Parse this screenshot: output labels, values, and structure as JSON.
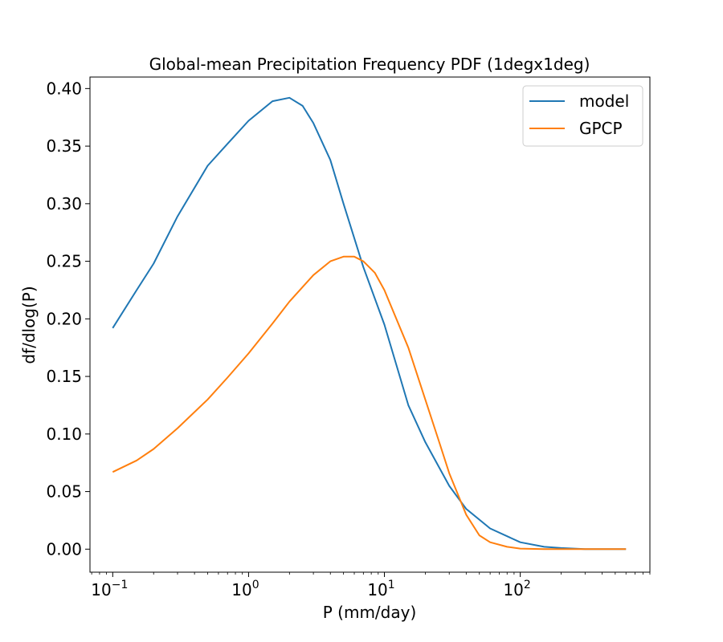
{
  "chart_data": {
    "type": "line",
    "title": "Global-mean Precipitation Frequency PDF (1degx1deg)",
    "xlabel": "P (mm/day)",
    "ylabel": "df/dlog(P)",
    "xscale": "log",
    "xlim": [
      0.068,
      900
    ],
    "ylim": [
      -0.02,
      0.41
    ],
    "xticks": [
      {
        "value": 0.1,
        "base": "10",
        "exp": "−1"
      },
      {
        "value": 1,
        "base": "10",
        "exp": "0"
      },
      {
        "value": 10,
        "base": "10",
        "exp": "1"
      },
      {
        "value": 100,
        "base": "10",
        "exp": "2"
      }
    ],
    "yticks": [
      "0.00",
      "0.05",
      "0.10",
      "0.15",
      "0.20",
      "0.25",
      "0.30",
      "0.35",
      "0.40"
    ],
    "legend_position": "top-right",
    "series": [
      {
        "name": "model",
        "color": "#1f77b4",
        "x": [
          0.1,
          0.15,
          0.2,
          0.3,
          0.5,
          0.7,
          1.0,
          1.5,
          2.0,
          2.5,
          3.0,
          4.0,
          5.0,
          7.0,
          10,
          15,
          20,
          30,
          40,
          60,
          100,
          150,
          200,
          300,
          600
        ],
        "y": [
          0.192,
          0.225,
          0.248,
          0.289,
          0.333,
          0.352,
          0.372,
          0.389,
          0.392,
          0.385,
          0.37,
          0.338,
          0.3,
          0.245,
          0.195,
          0.125,
          0.093,
          0.055,
          0.035,
          0.018,
          0.006,
          0.002,
          0.001,
          0.0,
          0.0
        ]
      },
      {
        "name": "GPCP",
        "color": "#ff7f0e",
        "x": [
          0.1,
          0.15,
          0.2,
          0.3,
          0.5,
          0.7,
          1.0,
          1.5,
          2.0,
          3.0,
          4.0,
          5.0,
          6.0,
          7.0,
          8.5,
          10,
          15,
          20,
          25,
          30,
          40,
          50,
          60,
          80,
          100,
          150,
          200,
          300,
          600
        ],
        "y": [
          0.067,
          0.077,
          0.087,
          0.105,
          0.13,
          0.149,
          0.17,
          0.196,
          0.215,
          0.238,
          0.25,
          0.254,
          0.254,
          0.25,
          0.24,
          0.225,
          0.175,
          0.13,
          0.095,
          0.066,
          0.03,
          0.012,
          0.006,
          0.002,
          0.0005,
          0.0,
          0.0,
          0.0,
          0.0
        ]
      }
    ]
  }
}
